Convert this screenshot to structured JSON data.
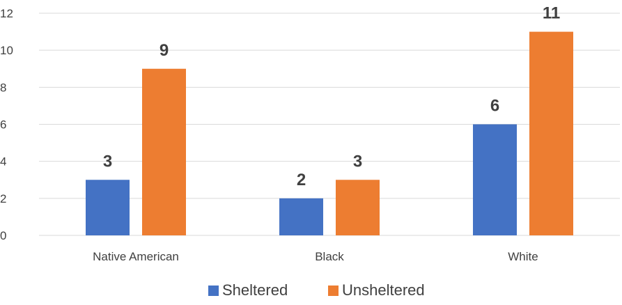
{
  "chart_data": {
    "type": "bar",
    "title": "",
    "xlabel": "",
    "ylabel": "",
    "categories": [
      "Native American",
      "Black",
      "White"
    ],
    "series": [
      {
        "name": "Sheltered",
        "values": [
          3,
          2,
          6
        ],
        "color": "#4472C4"
      },
      {
        "name": "Unsheltered",
        "values": [
          9,
          3,
          11
        ],
        "color": "#ED7D31"
      }
    ],
    "ylim": [
      0,
      12
    ],
    "yticks": [
      0,
      2,
      4,
      6,
      8,
      10,
      12
    ],
    "y_tick_labels": [
      "0",
      "2",
      "4",
      "6",
      "8",
      "10",
      "12"
    ],
    "grid": true,
    "gridline_color": "#D9D9D9",
    "data_labels": true,
    "legend_position": "bottom"
  }
}
